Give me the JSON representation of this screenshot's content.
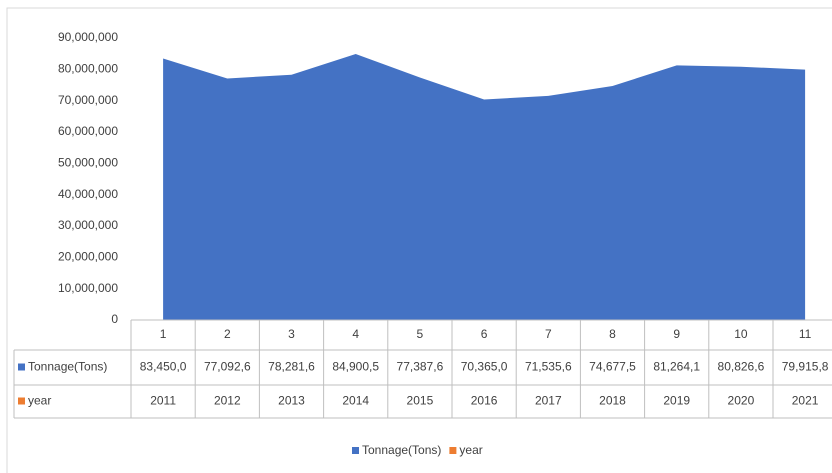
{
  "chart_data": {
    "type": "area",
    "categories": [
      "1",
      "2",
      "3",
      "4",
      "5",
      "6",
      "7",
      "8",
      "9",
      "10",
      "11"
    ],
    "series": [
      {
        "name": "Tonnage(Tons)",
        "color": "#4472c4",
        "values": [
          83450000,
          77092600,
          78281600,
          84900500,
          77387600,
          70365000,
          71535600,
          74677500,
          81264100,
          80826600,
          79915800
        ],
        "value_labels": [
          "83,450,0",
          "77,092,6",
          "78,281,6",
          "84,900,5",
          "77,387,6",
          "70,365,0",
          "71,535,6",
          "74,677,5",
          "81,264,1",
          "80,826,6",
          "79,915,8"
        ]
      },
      {
        "name": "year",
        "color": "#ed7d31",
        "values": [
          2011,
          2012,
          2013,
          2014,
          2015,
          2016,
          2017,
          2018,
          2019,
          2020,
          2021
        ]
      }
    ],
    "ylim": [
      0,
      90000000
    ],
    "yticks": [
      0,
      {
        "value": 10000000,
        "label": "10,000,000"
      },
      {
        "value": 20000000,
        "label": "20,000,000"
      },
      {
        "value": 30000000,
        "label": "30,000,000"
      },
      {
        "value": 40000000,
        "label": "40,000,000"
      },
      {
        "value": 50000000,
        "label": "50,000,000"
      },
      {
        "value": 60000000,
        "label": "60,000,000"
      },
      {
        "value": 70000000,
        "label": "70,000,000"
      },
      {
        "value": 80000000,
        "label": "80,000,000"
      },
      {
        "value": 90000000,
        "label": "90,000,000"
      }
    ],
    "legend": "bottom",
    "data_table": true
  }
}
